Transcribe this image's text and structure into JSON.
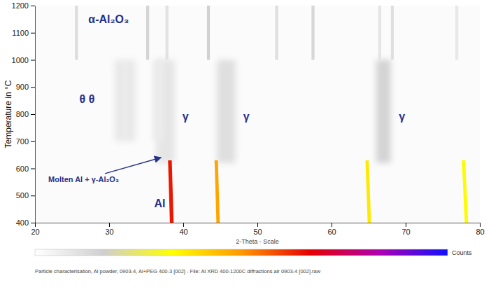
{
  "chart_data": {
    "type": "heatmap",
    "xlabel": "2-Theta - Scale",
    "ylabel": "Temperature in °C",
    "xlim": [
      20,
      80
    ],
    "xticks": [
      20,
      30,
      40,
      50,
      60,
      70,
      80
    ],
    "ylim": [
      400,
      1200
    ],
    "yticks": [
      400,
      500,
      600,
      700,
      800,
      900,
      1000,
      1100,
      1200
    ],
    "zlim": [
      0,
      100
    ],
    "colorbar": {
      "label": "Counts",
      "colors": [
        "#ffffff",
        "#cfcfcf",
        "#ffff00",
        "#ff9900",
        "#e60000",
        "#b000b0",
        "#1010ff"
      ]
    },
    "reflections": [
      {
        "x": [
          37.6,
          37.6
        ],
        "y": [
          620,
          1000
        ],
        "fwhm": 2.5,
        "intensity": 9
      },
      {
        "x": [
          45.8,
          45.8
        ],
        "y": [
          620,
          1000
        ],
        "fwhm": 2.5,
        "intensity": 11
      },
      {
        "x": [
          67.0,
          67.0
        ],
        "y": [
          620,
          1000
        ],
        "fwhm": 2.0,
        "intensity": 15
      },
      {
        "x": [
          31.5,
          31.5
        ],
        "y": [
          700,
          1000
        ],
        "fwhm": 1.5,
        "intensity": 8
      },
      {
        "x": [
          32.8,
          32.8
        ],
        "y": [
          700,
          1000
        ],
        "fwhm": 1.5,
        "intensity": 8
      },
      {
        "x": [
          36.7,
          36.7
        ],
        "y": [
          700,
          1000
        ],
        "fwhm": 1.5,
        "intensity": 7
      },
      {
        "x": [
          25.6,
          25.6
        ],
        "y": [
          1000,
          1200
        ],
        "fwhm": 0.4,
        "intensity": 12
      },
      {
        "x": [
          35.2,
          35.2
        ],
        "y": [
          1000,
          1200
        ],
        "fwhm": 0.4,
        "intensity": 15
      },
      {
        "x": [
          37.8,
          37.8
        ],
        "y": [
          1000,
          1200
        ],
        "fwhm": 0.4,
        "intensity": 10
      },
      {
        "x": [
          43.4,
          43.4
        ],
        "y": [
          1000,
          1200
        ],
        "fwhm": 0.4,
        "intensity": 16
      },
      {
        "x": [
          52.6,
          52.6
        ],
        "y": [
          1000,
          1200
        ],
        "fwhm": 0.4,
        "intensity": 11
      },
      {
        "x": [
          57.5,
          57.5
        ],
        "y": [
          1000,
          1200
        ],
        "fwhm": 0.4,
        "intensity": 14
      },
      {
        "x": [
          66.5,
          66.5
        ],
        "y": [
          1000,
          1200
        ],
        "fwhm": 0.4,
        "intensity": 9
      },
      {
        "x": [
          68.2,
          68.2
        ],
        "y": [
          1000,
          1200
        ],
        "fwhm": 0.4,
        "intensity": 11
      },
      {
        "x": [
          76.9,
          76.9
        ],
        "y": [
          1000,
          1200
        ],
        "fwhm": 0.4,
        "intensity": 8
      },
      {
        "x": [
          38.45,
          38.2
        ],
        "y": [
          400,
          630
        ],
        "fwhm": 0.5,
        "intensity": 64
      },
      {
        "x": [
          44.7,
          44.45
        ],
        "y": [
          400,
          630
        ],
        "fwhm": 0.45,
        "intensity": 48
      },
      {
        "x": [
          65.1,
          64.8
        ],
        "y": [
          400,
          630
        ],
        "fwhm": 0.45,
        "intensity": 37
      },
      {
        "x": [
          78.2,
          77.8
        ],
        "y": [
          400,
          630
        ],
        "fwhm": 0.45,
        "intensity": 34
      }
    ],
    "annotations": [
      {
        "text": "α-Al₂O₃",
        "x": 27.2,
        "y": 1150
      },
      {
        "text": "θ θ",
        "x": 26.0,
        "y": 855
      },
      {
        "text": "γ",
        "x": 40.3,
        "y": 790
      },
      {
        "text": "γ",
        "x": 48.5,
        "y": 790
      },
      {
        "text": "γ",
        "x": 69.5,
        "y": 790
      },
      {
        "text": "Al",
        "x": 37.6,
        "y": 470
      },
      {
        "text": "Molten Al + γ-Al₂O₃",
        "x": 21.8,
        "y": 560,
        "arrow": [
          37.0,
          640
        ]
      }
    ],
    "caption": "Particle characterisation, Al powder, 0903-4, Al+PEG 400-3 [002] - File: Al XRD 400-1200C diffractions air 0903-4 [002].raw"
  }
}
